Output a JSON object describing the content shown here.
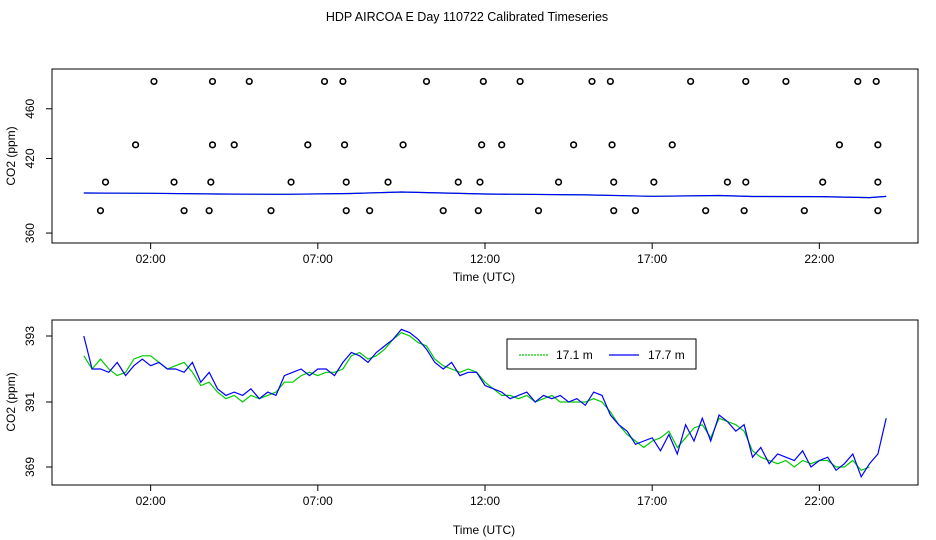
{
  "figure": {
    "title": "HDP AIRCOA E  Day 110722  Calibrated Timeseries"
  },
  "chart_data": [
    {
      "type": "scatter",
      "xlabel": "Time (UTC)",
      "ylabel": "CO2 (ppm)",
      "x_tick_labels": [
        "02:00",
        "07:00",
        "12:00",
        "17:00",
        "22:00"
      ],
      "x_ticks": [
        2,
        7,
        12,
        17,
        22
      ],
      "y_ticks": [
        360,
        420,
        460
      ],
      "y_tick_labels": [
        "360",
        "420",
        "460"
      ],
      "xlim": [
        -0.95,
        24.95
      ],
      "ylim": [
        352,
        492
      ],
      "colors": {
        "points": "#000000",
        "line_a": "#00cc00",
        "line_b": "#0000ff"
      },
      "series": [
        {
          "type": "scatter",
          "x": [
            2.1,
            3.85,
            4.95,
            7.2,
            7.75,
            10.25,
            11.95,
            13.05,
            15.2,
            15.75,
            18.15,
            19.8,
            21.0,
            23.15,
            23.7,
            1.55,
            3.85,
            4.5,
            6.7,
            7.8,
            9.55,
            11.9,
            12.5,
            14.65,
            15.8,
            17.6,
            22.6,
            23.75,
            0.65,
            2.7,
            3.8,
            6.2,
            7.85,
            9.1,
            11.2,
            11.85,
            14.2,
            15.85,
            17.05,
            19.25,
            19.8,
            22.1,
            23.75,
            0.5,
            3.0,
            3.75,
            5.6,
            7.85,
            8.55,
            10.75,
            11.8,
            13.6,
            15.85,
            16.5,
            18.6,
            19.75,
            21.55,
            23.75
          ],
          "y": [
            482,
            482,
            482,
            482,
            482,
            482,
            482,
            482,
            482,
            482,
            482,
            482,
            482,
            482,
            482,
            431,
            431,
            431,
            431,
            431,
            431,
            431,
            431,
            431,
            431,
            431,
            431,
            431,
            401,
            401,
            401,
            401,
            401,
            401,
            401,
            401,
            401,
            401,
            401,
            401,
            401,
            401,
            401,
            378,
            378,
            378,
            378,
            378,
            378,
            378,
            378,
            378,
            378,
            378,
            378,
            378,
            378,
            378
          ]
        },
        {
          "type": "line",
          "x": [
            0.0,
            2.0,
            4.0,
            6.0,
            8.0,
            9.5,
            12.0,
            15.0,
            17.0,
            19.0,
            20.0,
            22.0,
            23.5,
            24.0
          ],
          "y": [
            392.2,
            392.0,
            391.4,
            391.2,
            391.8,
            393.0,
            391.4,
            390.7,
            389.6,
            390.2,
            389.4,
            389.3,
            388.5,
            389.5
          ]
        }
      ]
    },
    {
      "type": "line",
      "xlabel": "Time (UTC)",
      "ylabel": "CO2 (ppm)",
      "x_tick_labels": [
        "02:00",
        "07:00",
        "12:00",
        "17:00",
        "22:00"
      ],
      "x_ticks": [
        2,
        7,
        12,
        17,
        22
      ],
      "y_ticks": [
        369,
        391,
        393
      ],
      "y_tick_labels": [
        "369",
        "391",
        "393"
      ],
      "xlim": [
        -0.95,
        24.95
      ],
      "ylim": [
        388.2,
        393.4
      ],
      "legend": {
        "position": "top-right-center"
      },
      "series": [
        {
          "name": "17.1 m",
          "color": "#00cc00",
          "x": [
            0.0,
            0.25,
            0.5,
            0.75,
            1.0,
            1.25,
            1.5,
            1.75,
            2.0,
            2.25,
            2.5,
            2.75,
            3.0,
            3.25,
            3.5,
            3.75,
            4.0,
            4.25,
            4.5,
            4.75,
            5.0,
            5.25,
            5.5,
            5.75,
            6.0,
            6.25,
            6.5,
            6.75,
            7.0,
            7.25,
            7.5,
            7.75,
            8.0,
            8.25,
            8.5,
            8.75,
            9.0,
            9.25,
            9.5,
            9.75,
            10.0,
            10.25,
            10.5,
            10.75,
            11.0,
            11.25,
            11.5,
            11.75,
            12.0,
            12.25,
            12.5,
            12.75,
            13.0,
            13.25,
            13.5,
            13.75,
            14.0,
            14.25,
            14.5,
            14.75,
            15.0,
            15.25,
            15.5,
            15.75,
            16.0,
            16.25,
            16.5,
            16.75,
            17.0,
            17.25,
            17.5,
            17.75,
            18.0,
            18.25,
            18.5,
            18.75,
            19.0,
            19.25,
            19.5,
            19.75,
            20.0,
            20.25,
            20.5,
            20.75,
            21.0,
            21.25,
            21.5,
            21.75,
            22.0,
            22.25,
            22.5,
            22.75,
            23.0,
            23.25,
            23.5
          ],
          "y": [
            392.4,
            392.0,
            392.3,
            392.0,
            391.8,
            391.9,
            392.3,
            392.4,
            392.4,
            392.2,
            392.0,
            392.1,
            392.2,
            391.9,
            391.5,
            391.6,
            391.3,
            391.1,
            391.2,
            391.0,
            391.2,
            391.1,
            391.2,
            391.3,
            391.6,
            391.6,
            391.8,
            391.9,
            391.8,
            391.9,
            391.9,
            392.0,
            392.4,
            392.5,
            392.3,
            392.4,
            392.6,
            392.9,
            393.1,
            393.0,
            392.8,
            392.7,
            392.3,
            392.1,
            392.0,
            391.9,
            392.0,
            391.9,
            391.6,
            391.4,
            391.2,
            391.2,
            391.1,
            391.2,
            391.0,
            391.1,
            391.2,
            391.0,
            391.0,
            391.0,
            391.0,
            391.1,
            391.0,
            390.7,
            390.3,
            390.0,
            389.8,
            389.6,
            389.8,
            389.9,
            390.1,
            389.6,
            389.9,
            390.2,
            390.3,
            389.9,
            390.5,
            390.4,
            390.3,
            390.1,
            389.5,
            389.3,
            389.2,
            389.1,
            389.2,
            389.0,
            389.2,
            389.1,
            389.2,
            389.2,
            389.0,
            389.0,
            389.2,
            388.9,
            389.0
          ]
        },
        {
          "name": "17.7 m",
          "color": "#0000ff",
          "x": [
            0.0,
            0.25,
            0.5,
            0.75,
            1.0,
            1.25,
            1.5,
            1.75,
            2.0,
            2.25,
            2.5,
            2.75,
            3.0,
            3.25,
            3.5,
            3.75,
            4.0,
            4.25,
            4.5,
            4.75,
            5.0,
            5.25,
            5.5,
            5.75,
            6.0,
            6.25,
            6.5,
            6.75,
            7.0,
            7.25,
            7.5,
            7.75,
            8.0,
            8.25,
            8.5,
            8.75,
            9.0,
            9.25,
            9.5,
            9.75,
            10.0,
            10.25,
            10.5,
            10.75,
            11.0,
            11.25,
            11.5,
            11.75,
            12.0,
            12.25,
            12.5,
            12.75,
            13.0,
            13.25,
            13.5,
            13.75,
            14.0,
            14.25,
            14.5,
            14.75,
            15.0,
            15.25,
            15.5,
            15.75,
            16.0,
            16.25,
            16.5,
            16.75,
            17.0,
            17.25,
            17.5,
            17.75,
            18.0,
            18.25,
            18.5,
            18.75,
            19.0,
            19.25,
            19.5,
            19.75,
            20.0,
            20.25,
            20.5,
            20.75,
            21.0,
            21.25,
            21.5,
            21.75,
            22.0,
            22.25,
            22.5,
            22.75,
            23.0,
            23.25,
            23.5,
            23.75,
            24.0
          ],
          "y": [
            393.0,
            392.0,
            392.0,
            391.9,
            392.2,
            391.8,
            392.1,
            392.3,
            392.1,
            392.2,
            392.0,
            392.0,
            391.9,
            392.2,
            391.6,
            391.9,
            391.4,
            391.2,
            391.3,
            391.2,
            391.4,
            391.1,
            391.3,
            391.2,
            391.8,
            391.9,
            392.0,
            391.8,
            392.0,
            392.0,
            391.8,
            392.2,
            392.5,
            392.4,
            392.2,
            392.5,
            392.7,
            392.9,
            393.2,
            393.1,
            392.9,
            392.6,
            392.2,
            392.0,
            392.2,
            391.8,
            391.9,
            391.9,
            391.5,
            391.4,
            391.3,
            391.1,
            391.2,
            391.3,
            391.0,
            391.2,
            391.1,
            391.2,
            391.0,
            391.1,
            390.9,
            391.3,
            391.2,
            390.6,
            390.3,
            390.1,
            389.7,
            389.8,
            389.9,
            389.5,
            390.0,
            389.4,
            390.3,
            389.8,
            390.5,
            389.8,
            390.6,
            390.4,
            390.1,
            390.3,
            389.3,
            389.6,
            389.1,
            389.4,
            389.3,
            389.2,
            389.5,
            389.0,
            389.2,
            389.3,
            388.9,
            389.1,
            389.4,
            388.7,
            389.1,
            389.4,
            390.5
          ]
        }
      ]
    }
  ]
}
